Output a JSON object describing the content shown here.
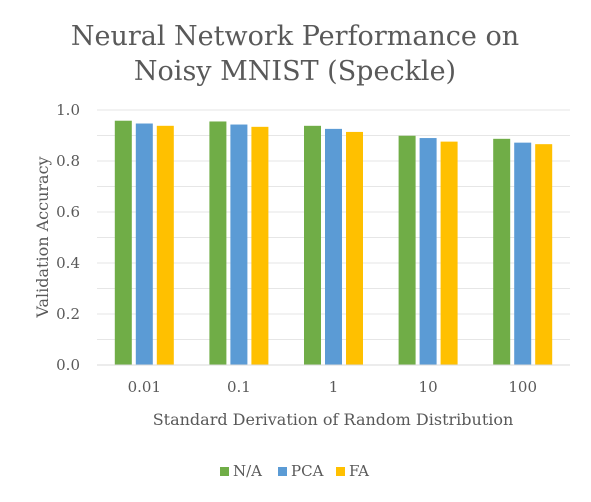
{
  "chart_data": {
    "type": "bar",
    "title_lines": [
      "Neural Network Performance on",
      "Noisy MNIST (Speckle)"
    ],
    "xlabel": "Standard Derivation of Random Distribution",
    "ylabel": "Validation Accuracy",
    "categories": [
      "0.01",
      "0.1",
      "1",
      "10",
      "100"
    ],
    "series": [
      {
        "name": "N/A",
        "color": "#70AD47",
        "values": [
          0.958,
          0.955,
          0.938,
          0.899,
          0.887
        ]
      },
      {
        "name": "PCA",
        "color": "#5B9BD5",
        "values": [
          0.947,
          0.943,
          0.926,
          0.89,
          0.872
        ]
      },
      {
        "name": "FA",
        "color": "#FFC000",
        "values": [
          0.938,
          0.934,
          0.914,
          0.876,
          0.866
        ]
      }
    ],
    "ylim": [
      0,
      1.0
    ],
    "yticks": [
      "0.0",
      "0.2",
      "0.4",
      "0.6",
      "0.8",
      "1.0"
    ],
    "grid": true,
    "legend_position": "bottom"
  }
}
